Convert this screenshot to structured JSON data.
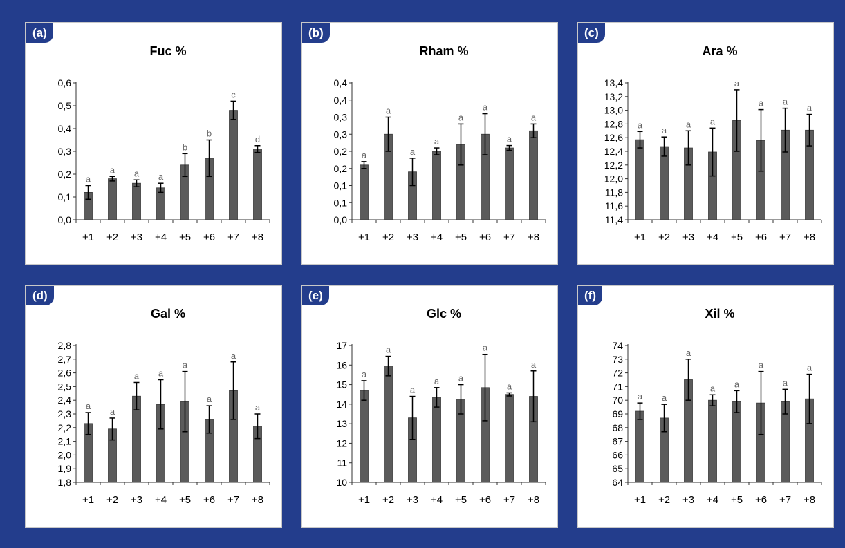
{
  "chart_data": [
    {
      "type": "bar",
      "panel": "(a)",
      "title": "Fuc %",
      "categories": [
        "+1",
        "+2",
        "+3",
        "+4",
        "+5",
        "+6",
        "+7",
        "+8"
      ],
      "values": [
        0.12,
        0.18,
        0.16,
        0.14,
        0.24,
        0.27,
        0.48,
        0.31
      ],
      "errors": [
        0.03,
        0.01,
        0.015,
        0.02,
        0.05,
        0.08,
        0.04,
        0.015
      ],
      "letters": [
        "a",
        "a",
        "a",
        "a",
        "b",
        "b",
        "c",
        "d"
      ],
      "yticks": [
        "0,0",
        "0,1",
        "0,2",
        "0,3",
        "0,4",
        "0,5",
        "0,6"
      ],
      "ylim": [
        0,
        0.6
      ],
      "grid": false
    },
    {
      "type": "bar",
      "panel": "(b)",
      "title": "Rham %",
      "categories": [
        "+1",
        "+2",
        "+3",
        "+4",
        "+5",
        "+6",
        "+7",
        "+8"
      ],
      "values": [
        0.16,
        0.25,
        0.14,
        0.2,
        0.22,
        0.25,
        0.21,
        0.26
      ],
      "errors": [
        0.01,
        0.05,
        0.04,
        0.01,
        0.06,
        0.06,
        0.007,
        0.02
      ],
      "letters": [
        "a",
        "a",
        "a",
        "a",
        "a",
        "a",
        "a",
        "a"
      ],
      "yticks": [
        "0,0",
        "0,1",
        "0,1",
        "0,2",
        "0,2",
        "0,3",
        "0,3",
        "0,4",
        "0,4"
      ],
      "ylim": [
        0,
        0.4
      ],
      "grid": false
    },
    {
      "type": "bar",
      "panel": "(c)",
      "title": "Ara %",
      "categories": [
        "+1",
        "+2",
        "+3",
        "+4",
        "+5",
        "+6",
        "+7",
        "+8"
      ],
      "values": [
        12.57,
        12.47,
        12.45,
        12.39,
        12.85,
        12.56,
        12.71,
        12.71
      ],
      "errors": [
        0.12,
        0.14,
        0.25,
        0.35,
        0.45,
        0.45,
        0.32,
        0.23
      ],
      "letters": [
        "a",
        "a",
        "a",
        "a",
        "a",
        "a",
        "a",
        "a"
      ],
      "yticks": [
        "11,4",
        "11,6",
        "11,8",
        "12,0",
        "12,2",
        "12,4",
        "12,6",
        "12,8",
        "13,0",
        "13,2",
        "13,4"
      ],
      "ylim": [
        11.4,
        13.4
      ],
      "grid": false
    },
    {
      "type": "bar",
      "panel": "(d)",
      "title": "Gal %",
      "categories": [
        "+1",
        "+2",
        "+3",
        "+4",
        "+5",
        "+6",
        "+7",
        "+8"
      ],
      "values": [
        2.23,
        2.19,
        2.43,
        2.37,
        2.39,
        2.26,
        2.47,
        2.21
      ],
      "errors": [
        0.08,
        0.08,
        0.1,
        0.18,
        0.22,
        0.1,
        0.21,
        0.09
      ],
      "letters": [
        "a",
        "a",
        "a",
        "a",
        "a",
        "a",
        "a",
        "a"
      ],
      "yticks": [
        "1,8",
        "1,9",
        "2,0",
        "2,1",
        "2,2",
        "2,3",
        "2,4",
        "2,5",
        "2,6",
        "2,7",
        "2,8"
      ],
      "ylim": [
        1.8,
        2.8
      ],
      "grid": false
    },
    {
      "type": "bar",
      "panel": "(e)",
      "title": "Glc %",
      "categories": [
        "+1",
        "+2",
        "+3",
        "+4",
        "+5",
        "+6",
        "+7",
        "+8"
      ],
      "values": [
        14.7,
        15.95,
        13.3,
        14.35,
        14.25,
        14.85,
        14.5,
        14.4
      ],
      "errors": [
        0.5,
        0.5,
        1.1,
        0.5,
        0.75,
        1.7,
        0.08,
        1.3
      ],
      "letters": [
        "a",
        "a",
        "a",
        "a",
        "a",
        "a",
        "a",
        "a"
      ],
      "yticks": [
        "10",
        "11",
        "12",
        "13",
        "14",
        "15",
        "16",
        "17"
      ],
      "ylim": [
        10,
        17
      ],
      "grid": false
    },
    {
      "type": "bar",
      "panel": "(f)",
      "title": "Xil %",
      "categories": [
        "+1",
        "+2",
        "+3",
        "+4",
        "+5",
        "+6",
        "+7",
        "+8"
      ],
      "values": [
        69.2,
        68.7,
        71.5,
        70.0,
        69.9,
        69.8,
        69.9,
        70.1
      ],
      "errors": [
        0.6,
        1.0,
        1.5,
        0.4,
        0.8,
        2.3,
        0.9,
        1.8
      ],
      "letters": [
        "a",
        "a",
        "a",
        "a",
        "a",
        "a",
        "a",
        "a"
      ],
      "yticks": [
        "64",
        "65",
        "66",
        "67",
        "68",
        "69",
        "70",
        "71",
        "72",
        "73",
        "74"
      ],
      "ylim": [
        64,
        74
      ],
      "grid": false
    }
  ],
  "colors": {
    "background": "#233d8c",
    "bar": "#5b5b5b",
    "bar_edge": "#3a3a3a",
    "text": "#000000",
    "letter": "#666666"
  }
}
